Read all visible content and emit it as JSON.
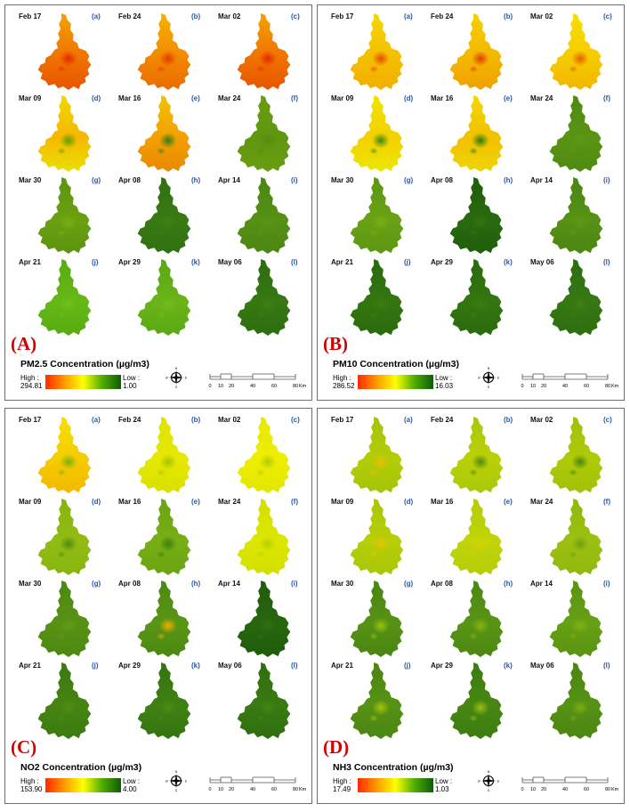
{
  "panels": [
    {
      "letter": "(A)",
      "title": "PM2.5 Concentration (µg/m3)",
      "legend": {
        "high_label": "High :",
        "high_value": "294.81",
        "low_label": "Low :",
        "low_value": "1.00"
      },
      "maps": [
        {
          "date": "Feb 17",
          "sub": "(a)",
          "colors": [
            "#f5a200",
            "#f07400",
            "#e85400"
          ],
          "hotspot": "#e42a00"
        },
        {
          "date": "Feb 24",
          "sub": "(b)",
          "colors": [
            "#f6b400",
            "#f28a00",
            "#ec6a00"
          ],
          "hotspot": "#e43a00"
        },
        {
          "date": "Mar 02",
          "sub": "(c)",
          "colors": [
            "#f5a200",
            "#f07400",
            "#e85400"
          ],
          "hotspot": "#e42a00"
        },
        {
          "date": "Mar 09",
          "sub": "(d)",
          "colors": [
            "#f0d800",
            "#f5b800",
            "#e8e000"
          ],
          "hotspot": "#5fa000"
        },
        {
          "date": "Mar 16",
          "sub": "(e)",
          "colors": [
            "#f2c200",
            "#f2a000",
            "#ea8800"
          ],
          "hotspot": "#2f7d1a"
        },
        {
          "date": "Mar 24",
          "sub": "(f)",
          "colors": [
            "#6a9e10",
            "#5f9610",
            "#6a9e10"
          ],
          "hotspot": "#548c10"
        },
        {
          "date": "Mar 30",
          "sub": "(g)",
          "colors": [
            "#5c9410",
            "#6aa010",
            "#5c9410"
          ],
          "hotspot": "#7ab012"
        },
        {
          "date": "Apr 08",
          "sub": "(h)",
          "colors": [
            "#2f7012",
            "#3a7a14",
            "#2f7012"
          ],
          "hotspot": "#3f8016"
        },
        {
          "date": "Apr 14",
          "sub": "(i)",
          "colors": [
            "#4a8614",
            "#569014",
            "#4a8614"
          ],
          "hotspot": "#5c9616"
        },
        {
          "date": "Apr 21",
          "sub": "(j)",
          "colors": [
            "#58ac10",
            "#66b816",
            "#58ac10"
          ],
          "hotspot": "#6ec01a"
        },
        {
          "date": "Apr 29",
          "sub": "(k)",
          "colors": [
            "#5aa814",
            "#6ab418",
            "#5aa814"
          ],
          "hotspot": "#72bc1c"
        },
        {
          "date": "May 06",
          "sub": "(l)",
          "colors": [
            "#2c6e10",
            "#367812",
            "#2c6e10"
          ],
          "hotspot": "#3e8014"
        }
      ]
    },
    {
      "letter": "(B)",
      "title": "PM10 Concentration (µg/m3)",
      "legend": {
        "high_label": "High :",
        "high_value": "286.52",
        "low_label": "Low :",
        "low_value": "16.03"
      },
      "maps": [
        {
          "date": "Feb 17",
          "sub": "(a)",
          "colors": [
            "#f6d600",
            "#f4c000",
            "#f2ae00"
          ],
          "hotspot": "#e84a00"
        },
        {
          "date": "Feb 24",
          "sub": "(b)",
          "colors": [
            "#f6d000",
            "#f4b800",
            "#f0a000"
          ],
          "hotspot": "#e03a00"
        },
        {
          "date": "Mar 02",
          "sub": "(c)",
          "colors": [
            "#f6de00",
            "#f5cc00",
            "#f2b600"
          ],
          "hotspot": "#e85c00"
        },
        {
          "date": "Mar 09",
          "sub": "(d)",
          "colors": [
            "#f0e400",
            "#f4d000",
            "#eae800"
          ],
          "hotspot": "#3a8a16"
        },
        {
          "date": "Mar 16",
          "sub": "(e)",
          "colors": [
            "#f4d800",
            "#f2c000",
            "#eed400"
          ],
          "hotspot": "#2a7a14"
        },
        {
          "date": "Mar 24",
          "sub": "(f)",
          "colors": [
            "#4e8a12",
            "#5a9414",
            "#4e8a12"
          ],
          "hotspot": "#609816"
        },
        {
          "date": "Mar 30",
          "sub": "(g)",
          "colors": [
            "#5c9612",
            "#6aa214",
            "#5c9612"
          ],
          "hotspot": "#78ae16"
        },
        {
          "date": "Apr 08",
          "sub": "(h)",
          "colors": [
            "#1f5e0c",
            "#2a6a0e",
            "#1f5e0c"
          ],
          "hotspot": "#327410"
        },
        {
          "date": "Apr 14",
          "sub": "(i)",
          "colors": [
            "#4a8612",
            "#569214",
            "#4a8612"
          ],
          "hotspot": "#5e9a16"
        },
        {
          "date": "Apr 21",
          "sub": "(j)",
          "colors": [
            "#2a6a0e",
            "#347610",
            "#2a6a0e"
          ],
          "hotspot": "#3c7e12"
        },
        {
          "date": "Apr 29",
          "sub": "(k)",
          "colors": [
            "#2a6a0e",
            "#347610",
            "#2a6a0e"
          ],
          "hotspot": "#3c7e12"
        },
        {
          "date": "May 06",
          "sub": "(l)",
          "colors": [
            "#2c6e10",
            "#367812",
            "#2c6e10"
          ],
          "hotspot": "#3e8014"
        }
      ]
    },
    {
      "letter": "(C)",
      "title": "NO2 Concentration (µg/m3)",
      "legend": {
        "high_label": "High :",
        "high_value": "153.90",
        "low_label": "Low :",
        "low_value": "4.00"
      },
      "maps": [
        {
          "date": "Feb 17",
          "sub": "(a)",
          "colors": [
            "#f6e000",
            "#f4cc00",
            "#f2b800"
          ],
          "hotspot": "#7ab010"
        },
        {
          "date": "Feb 24",
          "sub": "(b)",
          "colors": [
            "#dce400",
            "#e6e800",
            "#d8e000"
          ],
          "hotspot": "#a4c408"
        },
        {
          "date": "Mar 02",
          "sub": "(c)",
          "colors": [
            "#e6ea00",
            "#eeee00",
            "#e2e600"
          ],
          "hotspot": "#b2cc08"
        },
        {
          "date": "Mar 09",
          "sub": "(d)",
          "colors": [
            "#86b410",
            "#92bc12",
            "#86b410"
          ],
          "hotspot": "#4e8a10"
        },
        {
          "date": "Mar 16",
          "sub": "(e)",
          "colors": [
            "#6aa412",
            "#78ae14",
            "#6aa412"
          ],
          "hotspot": "#3e7e10"
        },
        {
          "date": "Mar 24",
          "sub": "(f)",
          "colors": [
            "#d2e000",
            "#dee600",
            "#d2e000"
          ],
          "hotspot": "#b8d004"
        },
        {
          "date": "Mar 30",
          "sub": "(g)",
          "colors": [
            "#4c8812",
            "#589214",
            "#4c8812"
          ],
          "hotspot": "#629c16"
        },
        {
          "date": "Apr 08",
          "sub": "(h)",
          "colors": [
            "#4a8812",
            "#5a9614",
            "#4a8812"
          ],
          "hotspot": "#f2b000"
        },
        {
          "date": "Apr 14",
          "sub": "(i)",
          "colors": [
            "#1e5c0c",
            "#28660e",
            "#1e5c0c"
          ],
          "hotspot": "#307010"
        },
        {
          "date": "Apr 21",
          "sub": "(j)",
          "colors": [
            "#3a7a10",
            "#468412",
            "#3a7a10"
          ],
          "hotspot": "#508e14"
        },
        {
          "date": "Apr 29",
          "sub": "(k)",
          "colors": [
            "#347410",
            "#408012",
            "#347410"
          ],
          "hotspot": "#4a8a14"
        },
        {
          "date": "May 06",
          "sub": "(l)",
          "colors": [
            "#2e6e10",
            "#3a7a12",
            "#2e6e10"
          ],
          "hotspot": "#448414"
        }
      ]
    },
    {
      "letter": "(D)",
      "title": "NH3 Concentration (µg/m3)",
      "legend": {
        "high_label": "High :",
        "high_value": "17.49",
        "low_label": "Low :",
        "low_value": "1.03"
      },
      "maps": [
        {
          "date": "Feb 17",
          "sub": "(a)",
          "colors": [
            "#a4c408",
            "#b4cc08",
            "#a4c408"
          ],
          "hotspot": "#e8c000"
        },
        {
          "date": "Feb 24",
          "sub": "(b)",
          "colors": [
            "#aac808",
            "#bad008",
            "#aac808"
          ],
          "hotspot": "#4e8a12"
        },
        {
          "date": "Mar 02",
          "sub": "(c)",
          "colors": [
            "#a0c008",
            "#b0ca08",
            "#a0c008"
          ],
          "hotspot": "#4a8612"
        },
        {
          "date": "Mar 09",
          "sub": "(d)",
          "colors": [
            "#a8c608",
            "#b8ce08",
            "#a8c608"
          ],
          "hotspot": "#e6c400"
        },
        {
          "date": "Mar 16",
          "sub": "(e)",
          "colors": [
            "#b4cc08",
            "#c2d408",
            "#b4cc08"
          ],
          "hotspot": "#d0d400"
        },
        {
          "date": "Mar 24",
          "sub": "(f)",
          "colors": [
            "#90b810",
            "#9cc010",
            "#90b810"
          ],
          "hotspot": "#6ea012"
        },
        {
          "date": "Mar 30",
          "sub": "(g)",
          "colors": [
            "#4a8612",
            "#569214",
            "#4a8612"
          ],
          "hotspot": "#9cc010"
        },
        {
          "date": "Apr 08",
          "sub": "(h)",
          "colors": [
            "#4c8812",
            "#589414",
            "#4c8812"
          ],
          "hotspot": "#8ab410"
        },
        {
          "date": "Apr 14",
          "sub": "(i)",
          "colors": [
            "#5a9412",
            "#66a014",
            "#5a9412"
          ],
          "hotspot": "#82b212"
        },
        {
          "date": "Apr 21",
          "sub": "(j)",
          "colors": [
            "#4a8612",
            "#569214",
            "#4a8612"
          ],
          "hotspot": "#a8c408"
        },
        {
          "date": "Apr 29",
          "sub": "(k)",
          "colors": [
            "#3c7c10",
            "#488612",
            "#3c7c10"
          ],
          "hotspot": "#9ac010"
        },
        {
          "date": "May 06",
          "sub": "(l)",
          "colors": [
            "#4a8612",
            "#569214",
            "#4a8612"
          ],
          "hotspot": "#7aae12"
        }
      ]
    }
  ],
  "compass": {
    "n": "N",
    "s": "S",
    "e": "E",
    "w": "W"
  },
  "scale": {
    "ticks": [
      "0",
      "10",
      "20",
      "40",
      "60",
      "80"
    ],
    "unit": "Km"
  }
}
